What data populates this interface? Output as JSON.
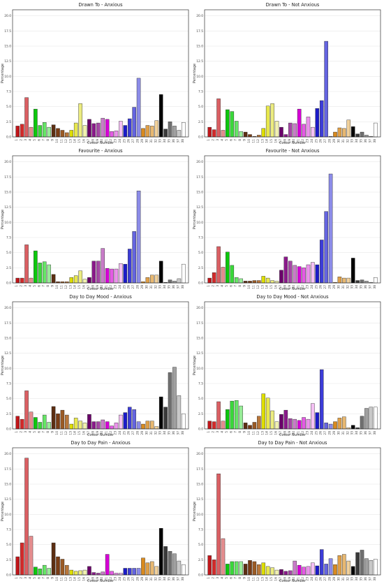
{
  "chart_data": [
    {
      "type": "bar",
      "title": "Drawn To - Anxious",
      "xlabel": "Colour Number",
      "ylabel": "Percentage",
      "ylim": [
        0,
        21
      ],
      "yticks": [
        "0.0",
        "2.5",
        "5.0",
        "7.5",
        "10.0",
        "12.5",
        "15.0",
        "17.5",
        "20.0"
      ],
      "categories": [
        "1",
        "2",
        "3",
        "4",
        "5",
        "6",
        "7",
        "8",
        "9",
        "10",
        "11",
        "12",
        "13",
        "14",
        "15",
        "16",
        "17",
        "18",
        "19",
        "20",
        "21",
        "22",
        "23",
        "24",
        "25",
        "26",
        "27",
        "28",
        "29",
        "30",
        "31",
        "32",
        "33",
        "34",
        "35",
        "36",
        "37",
        "38"
      ],
      "values": [
        1.8,
        2.1,
        6.5,
        1.6,
        4.6,
        1.9,
        2.4,
        1.6,
        2.0,
        1.4,
        1.1,
        0.7,
        1.1,
        2.3,
        5.5,
        1.9,
        2.9,
        2.2,
        2.3,
        3.1,
        2.9,
        0.9,
        1.0,
        2.6,
        1.9,
        3.0,
        4.9,
        9.7,
        1.4,
        1.9,
        1.8,
        2.7,
        7.0,
        1.3,
        2.5,
        1.8,
        1.1,
        2.4
      ]
    },
    {
      "type": "bar",
      "title": "Drawn To - Not Anxious",
      "xlabel": "Colour Number",
      "ylabel": "Percentage",
      "ylim": [
        0,
        21
      ],
      "yticks": [
        "0.0",
        "2.5",
        "5.0",
        "7.5",
        "10.0",
        "12.5",
        "15.0",
        "17.5",
        "20.0"
      ],
      "categories": [
        "1",
        "2",
        "3",
        "4",
        "5",
        "6",
        "7",
        "8",
        "9",
        "10",
        "11",
        "12",
        "13",
        "14",
        "15",
        "16",
        "17",
        "18",
        "19",
        "20",
        "21",
        "22",
        "23",
        "24",
        "25",
        "26",
        "27",
        "28",
        "29",
        "30",
        "31",
        "32",
        "33",
        "34",
        "35",
        "36",
        "37",
        "38"
      ],
      "values": [
        1.6,
        1.2,
        6.3,
        1.1,
        4.5,
        4.2,
        2.6,
        0.9,
        0.8,
        0.4,
        0.1,
        0.3,
        1.4,
        5.1,
        5.5,
        2.6,
        1.6,
        0.4,
        2.3,
        2.2,
        4.6,
        2.1,
        3.3,
        1.6,
        4.7,
        6.0,
        15.8,
        0.1,
        0.8,
        1.5,
        1.4,
        2.8,
        1.7,
        0.5,
        0.8,
        0.3,
        0.1,
        2.3
      ]
    },
    {
      "type": "bar",
      "title": "Favourite - Anxious",
      "xlabel": "Colour Number",
      "ylabel": "Percentage",
      "ylim": [
        0,
        21
      ],
      "yticks": [
        "0.0",
        "2.5",
        "5.0",
        "7.5",
        "10.0",
        "12.5",
        "15.0",
        "17.5",
        "20.0"
      ],
      "categories": [
        "1",
        "2",
        "3",
        "4",
        "5",
        "6",
        "7",
        "8",
        "9",
        "10",
        "11",
        "12",
        "13",
        "14",
        "15",
        "16",
        "17",
        "18",
        "19",
        "20",
        "21",
        "22",
        "23",
        "24",
        "25",
        "26",
        "27",
        "28",
        "29",
        "30",
        "31",
        "32",
        "33",
        "34",
        "35",
        "36",
        "37",
        "38"
      ],
      "values": [
        0.8,
        0.8,
        6.3,
        0.8,
        5.3,
        3.3,
        3.5,
        3.0,
        1.4,
        0.2,
        0.2,
        0.2,
        0.9,
        1.2,
        2.0,
        0.6,
        0.9,
        3.6,
        3.6,
        5.7,
        2.4,
        2.3,
        2.3,
        3.2,
        3.1,
        5.6,
        8.5,
        15.2,
        0.2,
        0.9,
        1.3,
        1.3,
        3.6,
        0.1,
        0.5,
        0.3,
        0.7,
        3.1
      ]
    },
    {
      "type": "bar",
      "title": "Favourite - Not Anxious",
      "xlabel": "Colour Number",
      "ylabel": "Percentage",
      "ylim": [
        0,
        21
      ],
      "yticks": [
        "0.0",
        "2.5",
        "5.0",
        "7.5",
        "10.0",
        "12.5",
        "15.0",
        "17.5",
        "20.0"
      ],
      "categories": [
        "1",
        "2",
        "3",
        "4",
        "5",
        "6",
        "7",
        "8",
        "9",
        "10",
        "11",
        "12",
        "13",
        "14",
        "15",
        "16",
        "17",
        "18",
        "19",
        "20",
        "21",
        "22",
        "23",
        "24",
        "25",
        "26",
        "27",
        "28",
        "29",
        "30",
        "31",
        "32",
        "33",
        "34",
        "35",
        "36",
        "37",
        "38"
      ],
      "values": [
        0.8,
        1.7,
        6.0,
        2.6,
        5.1,
        2.9,
        0.9,
        0.7,
        0.3,
        0.3,
        0.4,
        0.4,
        1.1,
        0.8,
        0.4,
        0.3,
        2.1,
        4.3,
        3.6,
        2.9,
        2.7,
        2.5,
        3.0,
        3.4,
        3.0,
        7.1,
        11.8,
        18.0,
        0.1,
        1.0,
        0.8,
        0.8,
        4.1,
        0.4,
        0.5,
        0.3,
        0.1,
        0.9
      ]
    },
    {
      "type": "bar",
      "title": "Day to Day Mood - Anxious",
      "xlabel": "Colour Number",
      "ylabel": "Percentage",
      "ylim": [
        0,
        21
      ],
      "yticks": [
        "0.0",
        "2.5",
        "5.0",
        "7.5",
        "10.0",
        "12.5",
        "15.0",
        "17.5",
        "20.0"
      ],
      "categories": [
        "1",
        "2",
        "3",
        "4",
        "5",
        "6",
        "7",
        "8",
        "9",
        "10",
        "11",
        "12",
        "13",
        "14",
        "15",
        "16",
        "17",
        "18",
        "19",
        "20",
        "21",
        "22",
        "23",
        "24",
        "25",
        "26",
        "27",
        "28",
        "29",
        "30",
        "31",
        "32",
        "33",
        "34",
        "35",
        "36",
        "37",
        "38"
      ],
      "values": [
        2.1,
        1.6,
        6.3,
        2.8,
        1.9,
        1.1,
        2.3,
        1.1,
        3.7,
        2.5,
        3.1,
        2.3,
        0.8,
        1.8,
        1.3,
        1.0,
        2.4,
        1.2,
        1.2,
        1.5,
        1.2,
        0.5,
        1.0,
        2.3,
        2.7,
        3.6,
        3.2,
        1.2,
        0.8,
        1.3,
        1.3,
        0.4,
        5.3,
        3.6,
        9.3,
        10.2,
        5.5,
        2.5
      ]
    },
    {
      "type": "bar",
      "title": "Day to Day Mood - Not Anxious",
      "xlabel": "Colour Number",
      "ylabel": "Percentage",
      "ylim": [
        0,
        21
      ],
      "yticks": [
        "0.0",
        "2.5",
        "5.0",
        "7.5",
        "10.0",
        "12.5",
        "15.0",
        "17.5",
        "20.0"
      ],
      "categories": [
        "1",
        "2",
        "3",
        "4",
        "5",
        "6",
        "7",
        "8",
        "9",
        "10",
        "11",
        "12",
        "13",
        "14",
        "15",
        "16",
        "17",
        "18",
        "19",
        "20",
        "21",
        "22",
        "23",
        "24",
        "25",
        "26",
        "27",
        "28",
        "29",
        "30",
        "31",
        "32",
        "33",
        "34",
        "35",
        "36",
        "37",
        "38"
      ],
      "values": [
        1.3,
        1.2,
        4.5,
        1.3,
        3.2,
        4.6,
        4.7,
        3.8,
        1.0,
        0.6,
        1.1,
        2.1,
        5.8,
        5.1,
        3.0,
        1.2,
        2.4,
        3.1,
        1.7,
        1.6,
        1.4,
        1.9,
        1.6,
        4.2,
        2.7,
        9.8,
        1.0,
        0.8,
        1.2,
        1.8,
        2.0,
        0.2,
        0.6,
        0.2,
        2.1,
        3.4,
        3.6,
        3.6
      ]
    },
    {
      "type": "bar",
      "title": "Day to Day Pain - Anxious",
      "xlabel": "Colour Number",
      "ylabel": "Percentage",
      "ylim": [
        0,
        21
      ],
      "yticks": [
        "0.0",
        "2.5",
        "5.0",
        "7.5",
        "10.0",
        "12.5",
        "15.0",
        "17.5",
        "20.0"
      ],
      "categories": [
        "1",
        "2",
        "3",
        "4",
        "5",
        "6",
        "7",
        "8",
        "9",
        "10",
        "11",
        "12",
        "13",
        "14",
        "15",
        "16",
        "17",
        "18",
        "19",
        "20",
        "21",
        "22",
        "23",
        "24",
        "25",
        "26",
        "27",
        "28",
        "29",
        "30",
        "31",
        "32",
        "33",
        "34",
        "35",
        "36",
        "37",
        "38"
      ],
      "values": [
        3.0,
        5.3,
        19.3,
        6.4,
        1.3,
        1.0,
        1.6,
        1.1,
        5.3,
        3.0,
        2.6,
        1.6,
        0.8,
        0.6,
        0.7,
        0.8,
        1.4,
        0.4,
        0.3,
        0.5,
        3.4,
        0.6,
        0.3,
        0.3,
        1.1,
        1.1,
        1.1,
        1.1,
        2.8,
        2.0,
        2.2,
        1.4,
        7.7,
        4.7,
        3.9,
        3.5,
        2.3,
        1.7
      ]
    },
    {
      "type": "bar",
      "title": "Day to Day Pain - Not Anxious",
      "xlabel": "Colour Number",
      "ylabel": "Percentage",
      "ylim": [
        0,
        21
      ],
      "yticks": [
        "0.0",
        "2.5",
        "5.0",
        "7.5",
        "10.0",
        "12.5",
        "15.0",
        "17.5",
        "20.0"
      ],
      "categories": [
        "1",
        "2",
        "3",
        "4",
        "5",
        "6",
        "7",
        "8",
        "9",
        "10",
        "11",
        "12",
        "13",
        "14",
        "15",
        "16",
        "17",
        "18",
        "19",
        "20",
        "21",
        "22",
        "23",
        "24",
        "25",
        "26",
        "27",
        "28",
        "29",
        "30",
        "31",
        "32",
        "33",
        "34",
        "35",
        "36",
        "37",
        "38"
      ],
      "values": [
        3.2,
        2.5,
        16.7,
        6.0,
        1.8,
        2.2,
        2.2,
        2.2,
        1.8,
        2.4,
        2.2,
        1.7,
        2.0,
        1.4,
        1.2,
        0.8,
        0.9,
        0.6,
        0.7,
        2.3,
        1.6,
        1.3,
        1.4,
        2.0,
        1.5,
        4.2,
        1.8,
        2.7,
        1.7,
        3.2,
        3.4,
        2.3,
        1.4,
        3.7,
        4.1,
        2.7,
        2.4,
        2.6
      ]
    }
  ],
  "bar_colors": [
    "#c0161a",
    "#d22b2b",
    "#db5f63",
    "#e58e8f",
    "#0cc80c",
    "#3ad83a",
    "#66e466",
    "#98ec98",
    "#5c2e12",
    "#7a3c14",
    "#9a5a24",
    "#b8763a",
    "#dede00",
    "#e8e84c",
    "#ecec80",
    "#f2f2b0",
    "#6a006a",
    "#8a1a8a",
    "#a648a6",
    "#c87cc8",
    "#d600d6",
    "#e45ae4",
    "#ec92ec",
    "#f4c0f4",
    "#1a1ac8",
    "#3c3cd8",
    "#6464e0",
    "#8c8ce8",
    "#d98a1e",
    "#e0a048",
    "#e8b870",
    "#f0d09a",
    "#000000",
    "#3a3a3a",
    "#707070",
    "#a0a0a0",
    "#c8c8c8",
    "#ffffff"
  ]
}
